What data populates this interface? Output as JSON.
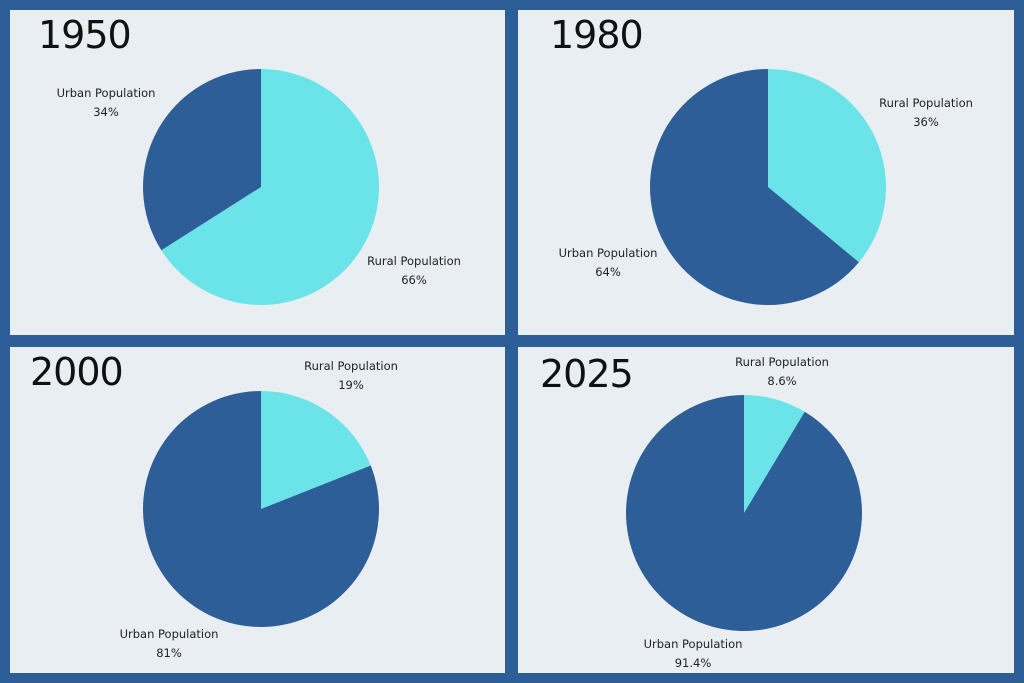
{
  "colors": {
    "urban": "#2e5e97",
    "rural": "#6ae4e8",
    "background": "#2e5e97",
    "panel": "#e9eef3"
  },
  "panels": [
    {
      "year": "1950",
      "urban_label": "Urban Population",
      "urban_value": "34%",
      "rural_label": "Rural Population",
      "rural_value": "66%"
    },
    {
      "year": "1980",
      "urban_label": "Urban Population",
      "urban_value": "64%",
      "rural_label": "Rural Population",
      "rural_value": "36%"
    },
    {
      "year": "2000",
      "urban_label": "Urban Population",
      "urban_value": "81%",
      "rural_label": "Rural Population",
      "rural_value": "19%"
    },
    {
      "year": "2025",
      "urban_label": "Urban Population",
      "urban_value": "91.4%",
      "rural_label": "Rural Population",
      "rural_value": "8.6%"
    }
  ],
  "chart_data": [
    {
      "type": "pie",
      "title": "1950",
      "categories": [
        "Urban Population",
        "Rural Population"
      ],
      "values": [
        34,
        66
      ],
      "colors": [
        "#2e5e97",
        "#6ae4e8"
      ]
    },
    {
      "type": "pie",
      "title": "1980",
      "categories": [
        "Urban Population",
        "Rural Population"
      ],
      "values": [
        64,
        36
      ],
      "colors": [
        "#2e5e97",
        "#6ae4e8"
      ]
    },
    {
      "type": "pie",
      "title": "2000",
      "categories": [
        "Urban Population",
        "Rural Population"
      ],
      "values": [
        81,
        19
      ],
      "colors": [
        "#2e5e97",
        "#6ae4e8"
      ]
    },
    {
      "type": "pie",
      "title": "2025",
      "categories": [
        "Urban Population",
        "Rural Population"
      ],
      "values": [
        91.4,
        8.6
      ],
      "colors": [
        "#2e5e97",
        "#6ae4e8"
      ]
    }
  ]
}
